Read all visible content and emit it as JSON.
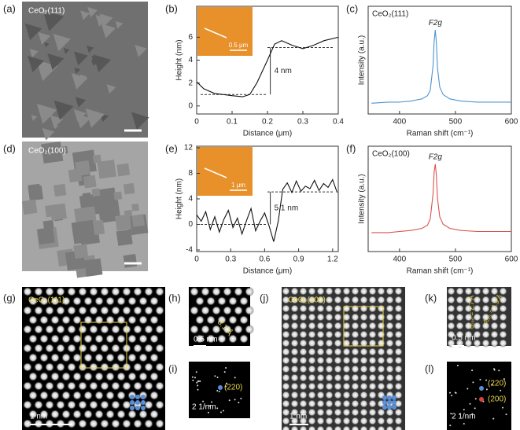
{
  "panel_labels": [
    "(a)",
    "(b)",
    "(c)",
    "(d)",
    "(e)",
    "(f)",
    "(g)",
    "(h)",
    "(i)",
    "(j)",
    "(k)",
    "(l)"
  ],
  "image_panels": {
    "a": {
      "sample": "CeO₂(111)"
    },
    "d": {
      "sample": "CeO₂(100)"
    },
    "g": {
      "sample": "CeO₂(111)",
      "scale": "1 nm"
    },
    "h": {
      "scale": "0.5 nm",
      "spacing": "3.1 Å"
    },
    "i": {
      "spot": "(220)",
      "scale": "2 1/nm"
    },
    "j": {
      "sample": "CeO₂(100)",
      "scale": "1 nm"
    },
    "k": {
      "scale": "0.5 nm",
      "spacings": [
        "d₂₀₀ = 2.7 Å",
        "d₂₂₀ = 1.9 Å"
      ]
    },
    "l": {
      "spots": [
        "(220)",
        "(200)"
      ],
      "scale": "2 1/nm"
    }
  },
  "chart_data": [
    {
      "type": "line",
      "xlabel": "Distance (μm)",
      "ylabel": "Height (nm)",
      "inset_scale": "0.5 μm",
      "x": [
        0,
        0.02,
        0.05,
        0.1,
        0.13,
        0.15,
        0.17,
        0.2,
        0.22,
        0.24,
        0.27,
        0.3,
        0.33,
        0.36,
        0.4
      ],
      "series": [
        {
          "color": "#111111",
          "values": [
            2.1,
            1.5,
            1.1,
            0.9,
            0.8,
            1.0,
            2.0,
            4.0,
            5.4,
            5.7,
            5.3,
            5.0,
            5.3,
            5.7,
            6.0
          ]
        }
      ],
      "xlim": [
        0,
        0.4
      ],
      "xticks": [
        0,
        0.1,
        0.2,
        0.3,
        0.4
      ],
      "ylim": [
        -0.7,
        8.7
      ],
      "yticks": [
        0,
        2,
        4,
        6
      ],
      "hlines": [
        1,
        5.1
      ],
      "annotation": "4 nm"
    },
    {
      "type": "line",
      "xlabel": "Raman shift (cm⁻¹)",
      "ylabel": "Intensity (a.u.)",
      "label": "CeO₂(111)",
      "peak_label": "F2g",
      "x": [
        350,
        380,
        400,
        420,
        440,
        450,
        455,
        460,
        462,
        464,
        466,
        468,
        472,
        478,
        490,
        510,
        540,
        570,
        600
      ],
      "series": [
        {
          "color": "#4f93d1",
          "values": [
            10,
            11,
            11,
            12,
            14,
            17,
            22,
            45,
            68,
            78,
            66,
            42,
            25,
            18,
            14,
            12,
            11,
            11,
            11
          ]
        }
      ],
      "xlim": [
        344,
        600
      ],
      "xticks": [
        400,
        500,
        600
      ],
      "ylim": [
        0,
        100
      ]
    },
    {
      "type": "line",
      "xlabel": "Distance (μm)",
      "ylabel": "Height (nm)",
      "inset_scale": "1 μm",
      "x": [
        0,
        0.04,
        0.08,
        0.12,
        0.16,
        0.2,
        0.24,
        0.28,
        0.32,
        0.36,
        0.4,
        0.44,
        0.48,
        0.52,
        0.56,
        0.6,
        0.64,
        0.68,
        0.72,
        0.76,
        0.8,
        0.84,
        0.88,
        0.92,
        0.96,
        1.0,
        1.04,
        1.08,
        1.12,
        1.16,
        1.2,
        1.24
      ],
      "series": [
        {
          "color": "#111111",
          "values": [
            1.5,
            0.5,
            2,
            -0.8,
            1.2,
            -1.2,
            0.8,
            2.2,
            -0.5,
            1,
            -1.5,
            0.6,
            2.5,
            -1,
            0.5,
            1.8,
            -0.3,
            -2.7,
            0.5,
            5.5,
            6.5,
            5,
            6.8,
            5.2,
            6,
            5.6,
            6.9,
            5.3,
            6.4,
            5.8,
            7,
            5
          ]
        }
      ],
      "xlim": [
        0,
        1.25
      ],
      "xticks": [
        0,
        0.3,
        0.6,
        0.9,
        1.2
      ],
      "ylim": [
        -4.25,
        12.25
      ],
      "yticks": [
        -4,
        0,
        4,
        8,
        12
      ],
      "hlines": [
        0,
        5.1
      ],
      "annotation": "5.1 nm"
    },
    {
      "type": "line",
      "xlabel": "Raman shift (cm⁻¹)",
      "ylabel": "Intensity (a.u.)",
      "label": "CeO₂(100)",
      "peak_label": "F2g",
      "x": [
        350,
        380,
        400,
        420,
        440,
        450,
        455,
        460,
        462,
        464,
        466,
        468,
        472,
        478,
        490,
        510,
        540,
        570,
        600
      ],
      "series": [
        {
          "color": "#d9534f",
          "values": [
            18,
            18,
            19,
            20,
            22,
            25,
            31,
            55,
            76,
            83,
            72,
            50,
            33,
            26,
            22,
            20,
            19,
            19,
            19
          ]
        }
      ],
      "xlim": [
        344,
        600
      ],
      "xticks": [
        400,
        500,
        600
      ],
      "ylim": [
        0,
        100
      ]
    }
  ]
}
